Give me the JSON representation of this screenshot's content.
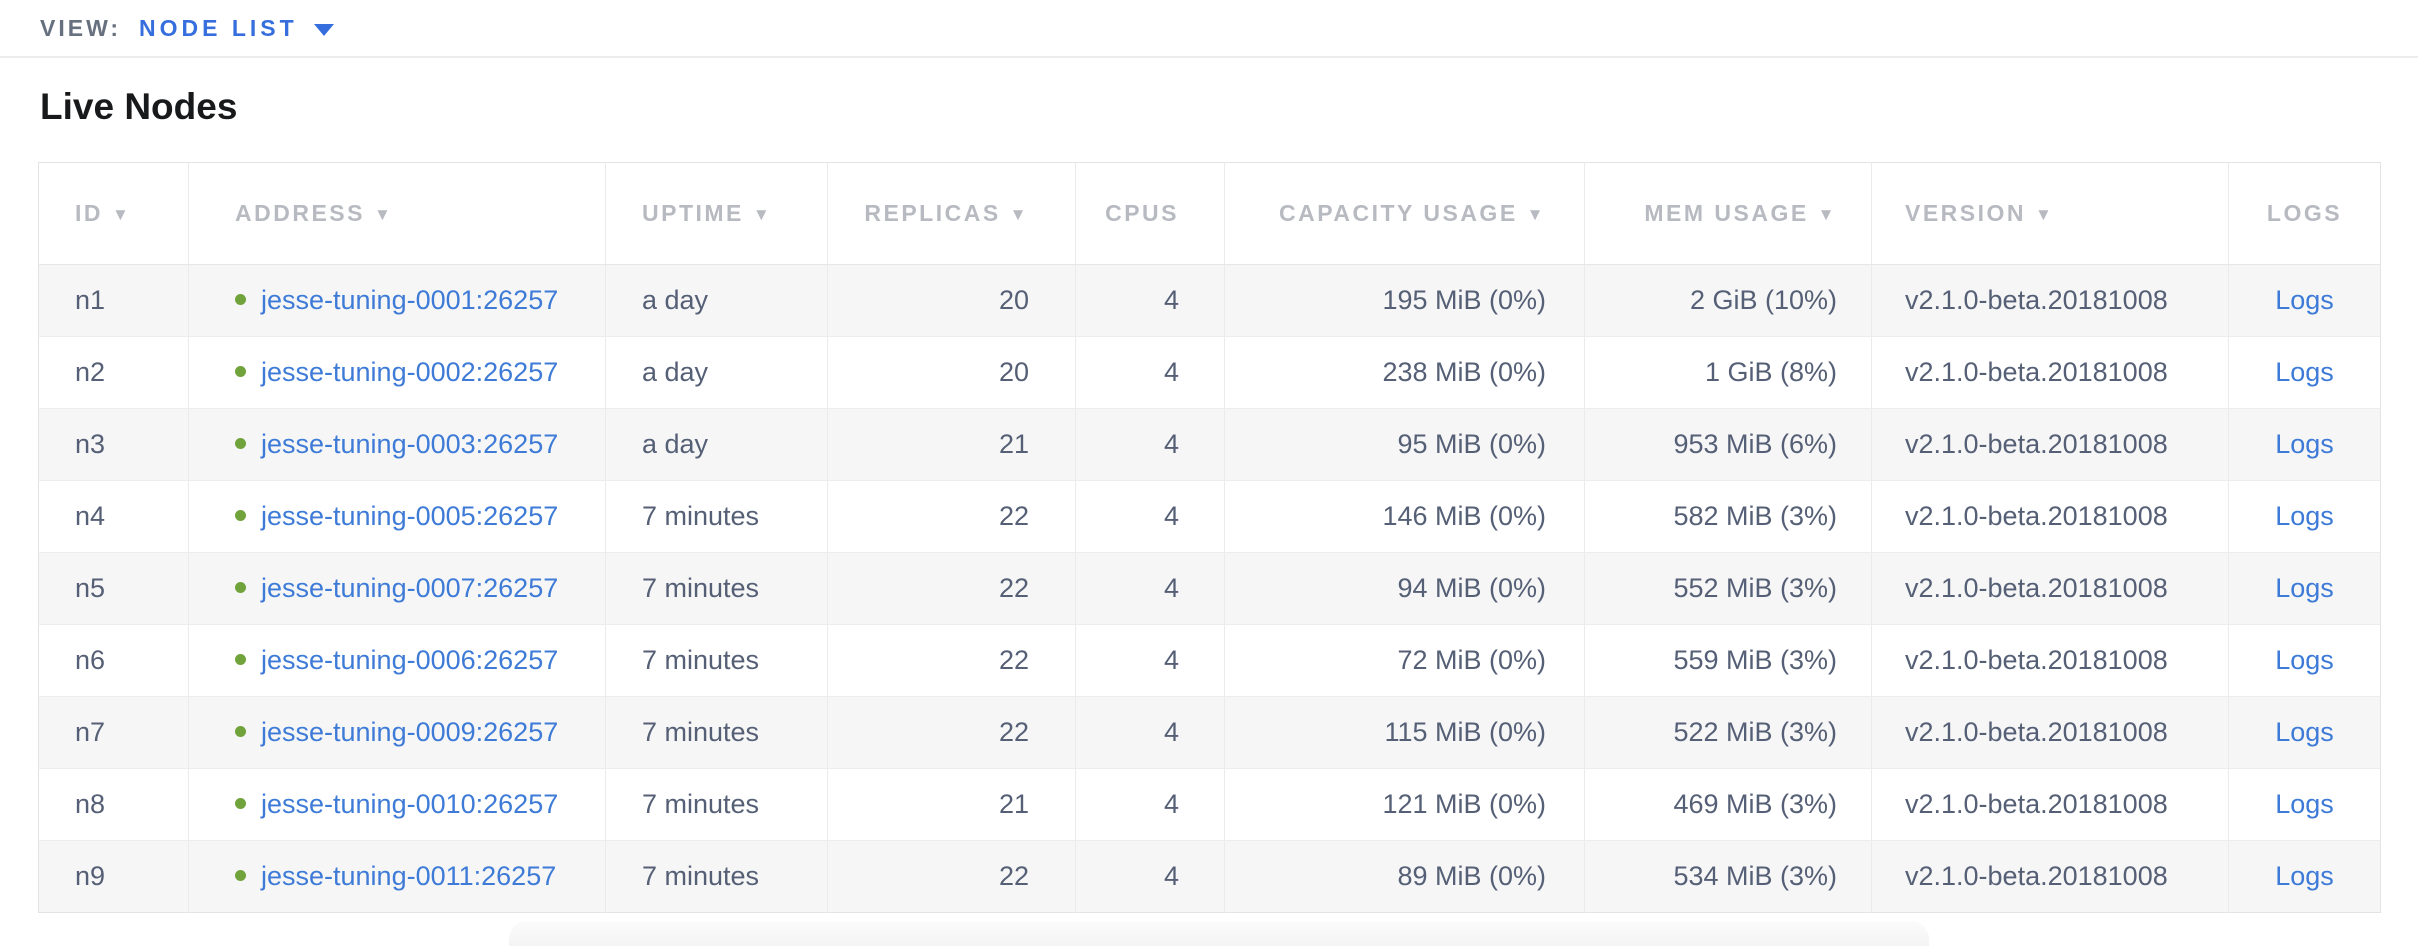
{
  "view_bar": {
    "label": "VIEW:",
    "selected": "NODE LIST"
  },
  "page": {
    "title": "Live Nodes"
  },
  "colors": {
    "accent_blue": "#366fdd",
    "link_blue": "#3e7bd7",
    "live_dot_green": "#71a33c",
    "header_text": "#b7bac0",
    "cell_text": "#555f75"
  },
  "table": {
    "sort_indicator": "▼",
    "columns": [
      {
        "key": "id",
        "label": "ID",
        "sortable": true
      },
      {
        "key": "address",
        "label": "ADDRESS",
        "sortable": true
      },
      {
        "key": "uptime",
        "label": "UPTIME",
        "sortable": true
      },
      {
        "key": "replicas",
        "label": "REPLICAS",
        "sortable": true
      },
      {
        "key": "cpus",
        "label": "CPUS",
        "sortable": false
      },
      {
        "key": "capacity",
        "label": "CAPACITY USAGE",
        "sortable": true
      },
      {
        "key": "mem",
        "label": "MEM USAGE",
        "sortable": true
      },
      {
        "key": "version",
        "label": "VERSION",
        "sortable": true
      },
      {
        "key": "logs",
        "label": "LOGS",
        "sortable": false
      }
    ],
    "rows": [
      {
        "id": "n1",
        "address": "jesse-tuning-0001:26257",
        "status": "live",
        "uptime": "a day",
        "replicas": "20",
        "cpus": "4",
        "capacity": "195 MiB (0%)",
        "mem": "2 GiB (10%)",
        "version": "v2.1.0-beta.20181008",
        "logs": "Logs"
      },
      {
        "id": "n2",
        "address": "jesse-tuning-0002:26257",
        "status": "live",
        "uptime": "a day",
        "replicas": "20",
        "cpus": "4",
        "capacity": "238 MiB (0%)",
        "mem": "1 GiB (8%)",
        "version": "v2.1.0-beta.20181008",
        "logs": "Logs"
      },
      {
        "id": "n3",
        "address": "jesse-tuning-0003:26257",
        "status": "live",
        "uptime": "a day",
        "replicas": "21",
        "cpus": "4",
        "capacity": "95 MiB (0%)",
        "mem": "953 MiB (6%)",
        "version": "v2.1.0-beta.20181008",
        "logs": "Logs"
      },
      {
        "id": "n4",
        "address": "jesse-tuning-0005:26257",
        "status": "live",
        "uptime": "7 minutes",
        "replicas": "22",
        "cpus": "4",
        "capacity": "146 MiB (0%)",
        "mem": "582 MiB (3%)",
        "version": "v2.1.0-beta.20181008",
        "logs": "Logs"
      },
      {
        "id": "n5",
        "address": "jesse-tuning-0007:26257",
        "status": "live",
        "uptime": "7 minutes",
        "replicas": "22",
        "cpus": "4",
        "capacity": "94 MiB (0%)",
        "mem": "552 MiB (3%)",
        "version": "v2.1.0-beta.20181008",
        "logs": "Logs"
      },
      {
        "id": "n6",
        "address": "jesse-tuning-0006:26257",
        "status": "live",
        "uptime": "7 minutes",
        "replicas": "22",
        "cpus": "4",
        "capacity": "72 MiB (0%)",
        "mem": "559 MiB (3%)",
        "version": "v2.1.0-beta.20181008",
        "logs": "Logs"
      },
      {
        "id": "n7",
        "address": "jesse-tuning-0009:26257",
        "status": "live",
        "uptime": "7 minutes",
        "replicas": "22",
        "cpus": "4",
        "capacity": "115 MiB (0%)",
        "mem": "522 MiB (3%)",
        "version": "v2.1.0-beta.20181008",
        "logs": "Logs"
      },
      {
        "id": "n8",
        "address": "jesse-tuning-0010:26257",
        "status": "live",
        "uptime": "7 minutes",
        "replicas": "21",
        "cpus": "4",
        "capacity": "121 MiB (0%)",
        "mem": "469 MiB (3%)",
        "version": "v2.1.0-beta.20181008",
        "logs": "Logs"
      },
      {
        "id": "n9",
        "address": "jesse-tuning-0011:26257",
        "status": "live",
        "uptime": "7 minutes",
        "replicas": "22",
        "cpus": "4",
        "capacity": "89 MiB (0%)",
        "mem": "534 MiB (3%)",
        "version": "v2.1.0-beta.20181008",
        "logs": "Logs"
      }
    ]
  }
}
